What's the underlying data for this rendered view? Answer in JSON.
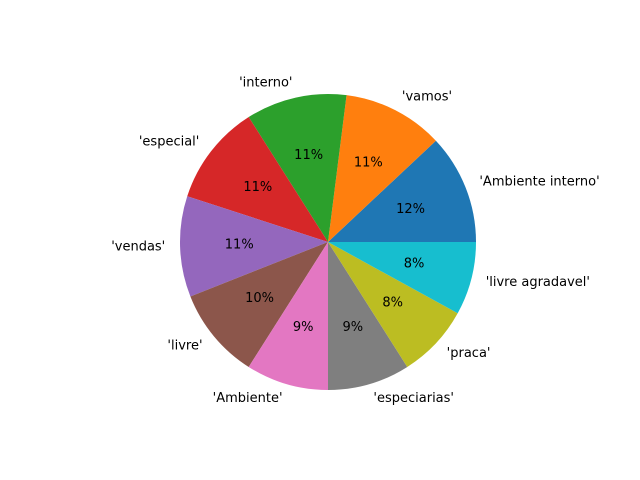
{
  "chart_data": {
    "type": "pie",
    "categories": [
      "'Ambiente interno'",
      "'vamos'",
      "'interno'",
      "'especial'",
      "'vendas'",
      "'livre'",
      "'Ambiente'",
      "'especiarias'",
      "'praca'",
      "'livre agradavel'"
    ],
    "values": [
      12,
      11,
      11,
      11,
      11,
      10,
      9,
      9,
      8,
      8
    ],
    "percent_labels": [
      "12%",
      "11%",
      "11%",
      "11%",
      "11%",
      "10%",
      "9%",
      "9%",
      "8%",
      "8%"
    ],
    "colors": [
      "#1f77b4",
      "#ff7f0e",
      "#2ca02c",
      "#d62728",
      "#9467bd",
      "#8c564b",
      "#e377c2",
      "#7f7f7f",
      "#bcbd22",
      "#17becf"
    ],
    "start_angle_deg": 0,
    "direction": "counterclockwise"
  }
}
